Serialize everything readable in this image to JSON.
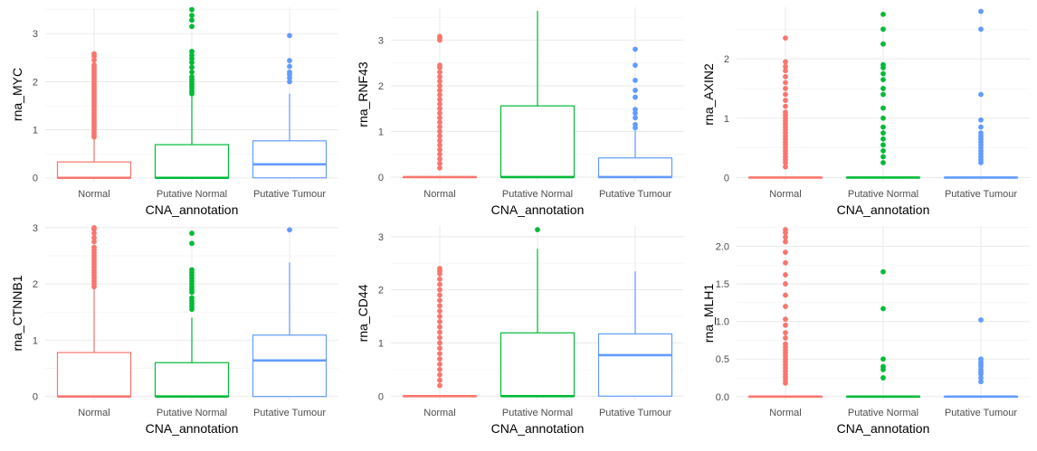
{
  "colors": {
    "Normal": "#F8766D",
    "Putative Normal": "#00BA38",
    "Putative Tumour": "#619CFF"
  },
  "panels": [
    {
      "chart_data": {
        "type": "box",
        "xlabel": "CNA_annotation",
        "ylabel": "rna_MYC",
        "categories": [
          "Normal",
          "Putative Normal",
          "Putative Tumour"
        ],
        "ylim": [
          -0.08,
          3.55
        ],
        "yticks": [
          0,
          1,
          2,
          3
        ],
        "ytick_labels": [
          "0",
          "1",
          "2",
          "3"
        ],
        "boxes": [
          {
            "q1": 0,
            "median": 0,
            "q3": 0.33,
            "whisker_low": 0,
            "whisker_high": 0.82,
            "outliers": [
              0.85,
              0.9,
              0.95,
              1.0,
              1.05,
              1.1,
              1.15,
              1.2,
              1.25,
              1.3,
              1.35,
              1.4,
              1.45,
              1.5,
              1.55,
              1.6,
              1.65,
              1.7,
              1.75,
              1.8,
              1.85,
              1.9,
              1.95,
              2.0,
              2.05,
              2.1,
              2.15,
              2.2,
              2.25,
              2.3,
              2.35,
              2.45,
              2.53,
              2.58
            ]
          },
          {
            "q1": 0,
            "median": 0,
            "q3": 0.69,
            "whisker_low": 0,
            "whisker_high": 1.72,
            "outliers": [
              1.75,
              1.8,
              1.85,
              1.9,
              1.95,
              2.0,
              2.05,
              2.1,
              2.2,
              2.3,
              2.4,
              2.48,
              2.55,
              2.63,
              3.15,
              3.28,
              3.38,
              3.5
            ]
          },
          {
            "q1": 0,
            "median": 0.28,
            "q3": 0.77,
            "whisker_low": 0,
            "whisker_high": 1.75,
            "outliers": [
              2.0,
              2.08,
              2.15,
              2.2,
              2.32,
              2.44,
              2.96
            ]
          }
        ]
      }
    },
    {
      "chart_data": {
        "type": "box",
        "xlabel": "CNA_annotation",
        "ylabel": "rna_RNF43",
        "categories": [
          "Normal",
          "Putative Normal",
          "Putative Tumour"
        ],
        "ylim": [
          -0.1,
          3.72
        ],
        "yticks": [
          0,
          1,
          2,
          3
        ],
        "ytick_labels": [
          "0",
          "1",
          "2",
          "3"
        ],
        "boxes": [
          {
            "q1": 0,
            "median": 0,
            "q3": 0,
            "whisker_low": 0,
            "whisker_high": 0,
            "outliers": [
              0.2,
              0.3,
              0.4,
              0.5,
              0.6,
              0.7,
              0.8,
              0.9,
              1.0,
              1.1,
              1.2,
              1.3,
              1.4,
              1.5,
              1.6,
              1.7,
              1.8,
              1.9,
              2.0,
              2.1,
              2.2,
              2.3,
              2.4,
              2.45,
              3.0,
              3.05,
              3.08
            ]
          },
          {
            "q1": 0,
            "median": 0,
            "q3": 1.56,
            "whisker_low": 0,
            "whisker_high": 3.64,
            "outliers": []
          },
          {
            "q1": 0,
            "median": 0,
            "q3": 0.42,
            "whisker_low": 0,
            "whisker_high": 1.02,
            "outliers": [
              1.08,
              1.15,
              1.3,
              1.4,
              1.48,
              1.75,
              1.9,
              2.12,
              2.45,
              2.8
            ]
          }
        ]
      }
    },
    {
      "chart_data": {
        "type": "box",
        "xlabel": "CNA_annotation",
        "ylabel": "rna_AXIN2",
        "categories": [
          "Normal",
          "Putative Normal",
          "Putative Tumour"
        ],
        "ylim": [
          -0.07,
          2.87
        ],
        "yticks": [
          0,
          1,
          2
        ],
        "ytick_labels": [
          "0",
          "1",
          "2"
        ],
        "boxes": [
          {
            "q1": 0,
            "median": 0,
            "q3": 0,
            "whisker_low": 0,
            "whisker_high": 0,
            "outliers": [
              0.18,
              0.25,
              0.3,
              0.35,
              0.4,
              0.45,
              0.5,
              0.55,
              0.6,
              0.65,
              0.7,
              0.75,
              0.8,
              0.85,
              0.9,
              0.95,
              1.0,
              1.05,
              1.1,
              1.2,
              1.3,
              1.4,
              1.5,
              1.6,
              1.7,
              1.8,
              1.87,
              1.95,
              2.35
            ]
          },
          {
            "q1": 0,
            "median": 0,
            "q3": 0,
            "whisker_low": 0,
            "whisker_high": 0,
            "outliers": [
              0.25,
              0.35,
              0.45,
              0.55,
              0.65,
              0.75,
              0.85,
              1.0,
              1.17,
              1.4,
              1.5,
              1.65,
              1.75,
              1.85,
              1.9,
              2.25,
              2.5,
              2.75
            ]
          },
          {
            "q1": 0,
            "median": 0,
            "q3": 0,
            "whisker_low": 0,
            "whisker_high": 0,
            "outliers": [
              0.25,
              0.3,
              0.35,
              0.4,
              0.45,
              0.5,
              0.55,
              0.6,
              0.65,
              0.7,
              0.75,
              0.85,
              0.97,
              1.4,
              2.5,
              2.8
            ]
          }
        ]
      }
    },
    {
      "chart_data": {
        "type": "box",
        "xlabel": "CNA_annotation",
        "ylabel": "rna_CTNNB1",
        "categories": [
          "Normal",
          "Putative Normal",
          "Putative Tumour"
        ],
        "ylim": [
          -0.07,
          3.03
        ],
        "yticks": [
          0,
          1,
          2,
          3
        ],
        "ytick_labels": [
          "0",
          "1",
          "2",
          "3"
        ],
        "boxes": [
          {
            "q1": 0,
            "median": 0,
            "q3": 0.78,
            "whisker_low": 0,
            "whisker_high": 1.93,
            "outliers": [
              1.95,
              2.0,
              2.05,
              2.1,
              2.15,
              2.2,
              2.25,
              2.3,
              2.35,
              2.4,
              2.45,
              2.5,
              2.55,
              2.6,
              2.65,
              2.75,
              2.82,
              2.9,
              2.97,
              3.0
            ]
          },
          {
            "q1": 0,
            "median": 0,
            "q3": 0.6,
            "whisker_low": 0,
            "whisker_high": 1.4,
            "outliers": [
              1.55,
              1.6,
              1.65,
              1.7,
              1.75,
              1.85,
              1.9,
              1.95,
              2.0,
              2.05,
              2.1,
              2.15,
              2.2,
              2.25,
              2.72,
              2.9
            ]
          },
          {
            "q1": 0,
            "median": 0.64,
            "q3": 1.09,
            "whisker_low": 0,
            "whisker_high": 2.38,
            "outliers": [
              2.96
            ]
          }
        ]
      }
    },
    {
      "chart_data": {
        "type": "box",
        "xlabel": "CNA_annotation",
        "ylabel": "rna_CD44",
        "categories": [
          "Normal",
          "Putative Normal",
          "Putative Tumour"
        ],
        "ylim": [
          -0.08,
          3.2
        ],
        "yticks": [
          0,
          1,
          2,
          3
        ],
        "ytick_labels": [
          "0",
          "1",
          "2",
          "3"
        ],
        "boxes": [
          {
            "q1": 0,
            "median": 0,
            "q3": 0,
            "whisker_low": 0,
            "whisker_high": 0,
            "outliers": [
              0.2,
              0.3,
              0.4,
              0.5,
              0.6,
              0.7,
              0.8,
              0.9,
              1.0,
              1.1,
              1.2,
              1.3,
              1.4,
              1.5,
              1.6,
              1.7,
              1.8,
              1.9,
              2.0,
              2.1,
              2.2,
              2.3,
              2.35,
              2.4
            ]
          },
          {
            "q1": 0,
            "median": 0,
            "q3": 1.19,
            "whisker_low": 0,
            "whisker_high": 2.77,
            "outliers": [
              3.13
            ]
          },
          {
            "q1": 0,
            "median": 0.77,
            "q3": 1.17,
            "whisker_low": 0,
            "whisker_high": 2.35,
            "outliers": []
          }
        ]
      }
    },
    {
      "chart_data": {
        "type": "box",
        "xlabel": "CNA_annotation",
        "ylabel": "rna_MLH1",
        "categories": [
          "Normal",
          "Putative Normal",
          "Putative Tumour"
        ],
        "ylim": [
          -0.05,
          2.27
        ],
        "yticks": [
          0,
          0.5,
          1.0,
          1.5,
          2.0
        ],
        "ytick_labels": [
          "0.0",
          "0.5",
          "1.0",
          "1.5",
          "2.0"
        ],
        "boxes": [
          {
            "q1": 0,
            "median": 0,
            "q3": 0,
            "whisker_low": 0,
            "whisker_high": 0,
            "outliers": [
              0.18,
              0.22,
              0.26,
              0.3,
              0.34,
              0.38,
              0.42,
              0.46,
              0.5,
              0.54,
              0.58,
              0.62,
              0.66,
              0.7,
              0.78,
              0.85,
              0.95,
              1.03,
              1.2,
              1.35,
              1.5,
              1.62,
              1.78,
              1.92,
              2.06,
              2.12,
              2.18,
              2.22
            ]
          },
          {
            "q1": 0,
            "median": 0,
            "q3": 0,
            "whisker_low": 0,
            "whisker_high": 0,
            "outliers": [
              0.25,
              0.36,
              0.4,
              0.5,
              1.17,
              1.66
            ]
          },
          {
            "q1": 0,
            "median": 0,
            "q3": 0,
            "whisker_low": 0,
            "whisker_high": 0,
            "outliers": [
              0.2,
              0.25,
              0.3,
              0.33,
              0.36,
              0.4,
              0.43,
              0.46,
              0.5,
              1.02
            ]
          }
        ]
      }
    }
  ]
}
